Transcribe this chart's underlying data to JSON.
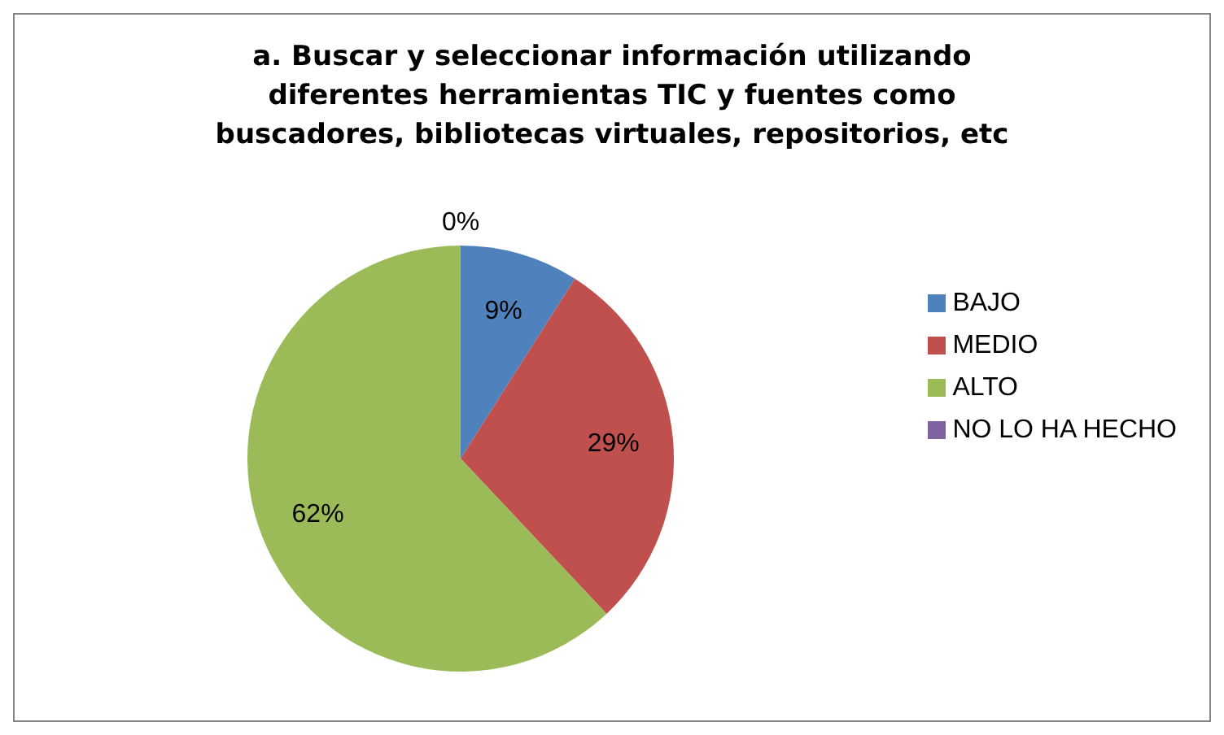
{
  "chart_data": {
    "type": "pie",
    "title": "a. Buscar y seleccionar información utilizando diferentes herramientas TIC y fuentes como buscadores, bibliotecas virtuales, repositorios, etc",
    "categories": [
      "BAJO",
      "MEDIO",
      "ALTO",
      "NO LO HA HECHO"
    ],
    "values": [
      9,
      29,
      62,
      0
    ],
    "value_labels": [
      "9%",
      "29%",
      "62%",
      "0%"
    ],
    "colors": [
      "#4f81bd",
      "#c0504d",
      "#9bbb59",
      "#8064a2"
    ],
    "legend": "right"
  }
}
